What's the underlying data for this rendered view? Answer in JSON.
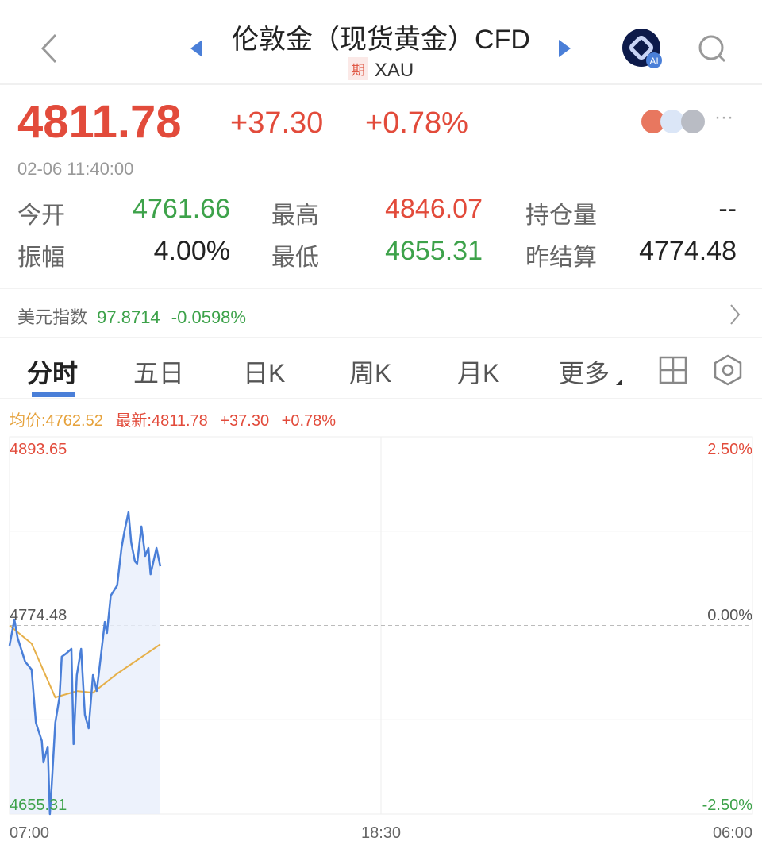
{
  "header": {
    "title": "伦敦金（现货黄金）CFD",
    "badge": "期",
    "symbol": "XAU",
    "icons": [
      "back-chevron-icon",
      "prev-triangle-icon",
      "next-triangle-icon",
      "ai-assistant-icon",
      "search-icon"
    ]
  },
  "quote": {
    "price": "4811.78",
    "change": "+37.30",
    "change_pct": "+0.78%",
    "timestamp": "02-06 11:40:00",
    "more": "···"
  },
  "stats": [
    {
      "label": "今开",
      "value": "4761.66",
      "color": "green"
    },
    {
      "label": "最高",
      "value": "4846.07",
      "color": "red"
    },
    {
      "label": "持仓量",
      "value": "--",
      "color": "dark"
    },
    {
      "label": "振幅",
      "value": "4.00%",
      "color": "dark"
    },
    {
      "label": "最低",
      "value": "4655.31",
      "color": "green"
    },
    {
      "label": "昨结算",
      "value": "4774.48",
      "color": "dark"
    }
  ],
  "usd_index": {
    "label": "美元指数",
    "value": "97.8714",
    "change": "-0.0598%"
  },
  "tabs": [
    {
      "label": "分时",
      "active": true
    },
    {
      "label": "五日"
    },
    {
      "label": "日K"
    },
    {
      "label": "周K"
    },
    {
      "label": "月K"
    },
    {
      "label": "更多"
    }
  ],
  "colors": {
    "up": "#e24b3b",
    "down": "#3da24a",
    "price_line": "#4a7fd8",
    "avg_line": "#e6b04a",
    "accent": "#4a7fd8"
  },
  "chart_data": {
    "type": "line",
    "legend": {
      "avg_label": "均价:4762.52",
      "latest_label": "最新:4811.78",
      "change": "+37.30",
      "change_pct": "+0.78%"
    },
    "y_left_ticks": [
      "4893.65",
      "4774.48",
      "4655.31"
    ],
    "y_right_ticks": [
      "2.50%",
      "0.00%",
      "-2.50%"
    ],
    "x_ticks": [
      "07:00",
      "18:30",
      "06:00"
    ],
    "ylim": [
      4655.31,
      4893.65
    ],
    "xlim": [
      "07:00",
      "06:00"
    ],
    "prev_settle": 4774.48,
    "grid": true,
    "series": [
      {
        "key": "price",
        "x": [
          "07:00",
          "07:09",
          "07:15",
          "07:29",
          "07:41",
          "07:49",
          "08:00",
          "08:03",
          "08:11",
          "08:15",
          "08:18",
          "08:25",
          "08:33",
          "08:37",
          "08:45",
          "08:55",
          "08:59",
          "09:05",
          "09:13",
          "09:20",
          "09:27",
          "09:35",
          "09:42",
          "09:49",
          "09:57",
          "10:01",
          "10:08",
          "10:20",
          "10:28",
          "10:34",
          "10:41",
          "10:46",
          "10:53",
          "10:57",
          "11:05",
          "11:12",
          "11:18",
          "11:22",
          "11:33",
          "11:40"
        ],
        "y": [
          4761.7,
          4778.2,
          4766.7,
          4751.6,
          4746.6,
          4713.0,
          4701.5,
          4687.9,
          4697.9,
          4655.31,
          4671.4,
          4713.0,
          4729.6,
          4754.7,
          4756.7,
          4759.7,
          4699.5,
          4743.1,
          4759.7,
          4718.0,
          4709.5,
          4743.1,
          4733.1,
          4753.2,
          4776.7,
          4769.7,
          4793.3,
          4799.8,
          4823.4,
          4834.9,
          4846.07,
          4826.9,
          4814.9,
          4813.4,
          4837.0,
          4818.4,
          4823.4,
          4806.8,
          4823.4,
          4811.78
        ]
      },
      {
        "key": "avg",
        "x": [
          "07:00",
          "07:41",
          "08:25",
          "09:05",
          "09:35",
          "10:20",
          "11:40"
        ],
        "y": [
          4774.5,
          4763.0,
          4729.0,
          4733.0,
          4732.0,
          4744.0,
          4762.52
        ]
      }
    ]
  }
}
